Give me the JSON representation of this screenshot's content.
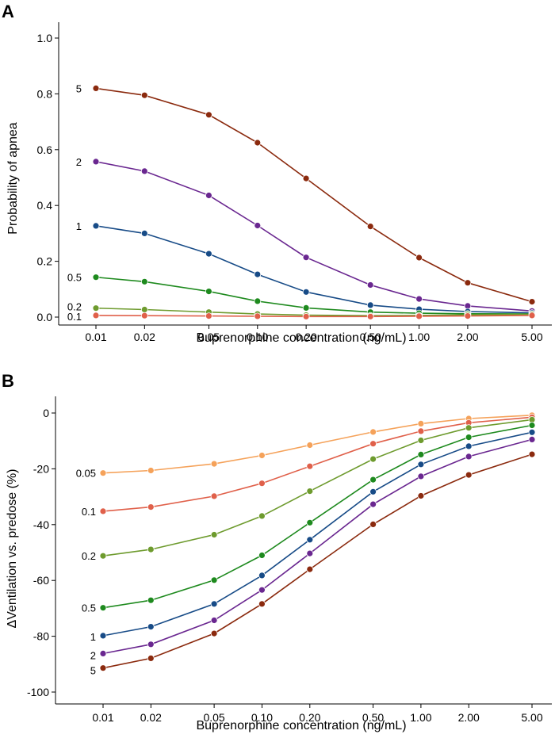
{
  "figure": {
    "panels": [
      "A",
      "B"
    ]
  },
  "colors": {
    "5": "#8b2a0e",
    "2": "#6a2790",
    "1": "#174b87",
    "0.5": "#1e8a1e",
    "0.2": "#6e9b2e",
    "0.1": "#e0604a",
    "0.05": "#f5a25a"
  },
  "chart_data": [
    {
      "panel": "A",
      "type": "line",
      "xlabel": "Buprenorphine concentration (ng/mL)",
      "ylabel": "Probability of apnea",
      "xscale": "log",
      "x": [
        0.01,
        0.02,
        0.05,
        0.1,
        0.2,
        0.5,
        1,
        2,
        5
      ],
      "xtick_labels": [
        "0.01",
        "0.02",
        "0.05",
        "0.10",
        "0.20",
        "0.50",
        "1.00",
        "2.00",
        "5.00"
      ],
      "ylim": [
        0,
        1.0
      ],
      "yticks": [
        0.0,
        0.2,
        0.4,
        0.6,
        0.8,
        1.0
      ],
      "ytick_labels": [
        "0.0",
        "0.2",
        "0.4",
        "0.6",
        "0.8",
        "1.0"
      ],
      "grid": false,
      "series": [
        {
          "name": "5",
          "values": [
            0.82,
            0.795,
            0.725,
            0.625,
            0.497,
            0.325,
            0.213,
            0.123,
            0.055
          ]
        },
        {
          "name": "2",
          "values": [
            0.557,
            0.523,
            0.436,
            0.328,
            0.214,
            0.115,
            0.065,
            0.04,
            0.022
          ]
        },
        {
          "name": "1",
          "values": [
            0.327,
            0.3,
            0.227,
            0.153,
            0.09,
            0.043,
            0.028,
            0.02,
            0.015
          ]
        },
        {
          "name": "0.5",
          "values": [
            0.143,
            0.127,
            0.092,
            0.057,
            0.033,
            0.018,
            0.014,
            0.012,
            0.011
          ]
        },
        {
          "name": "0.2",
          "values": [
            0.032,
            0.027,
            0.018,
            0.011,
            0.007,
            0.005,
            0.006,
            0.008,
            0.01
          ]
        },
        {
          "name": "0.1",
          "values": [
            0.006,
            0.005,
            0.004,
            0.003,
            0.002,
            0.002,
            0.003,
            0.004,
            0.006
          ]
        }
      ]
    },
    {
      "panel": "B",
      "type": "line",
      "xlabel": "Buprenorphine concentration (ng/mL)",
      "ylabel": "ΔVentilation vs. predose (%)",
      "xscale": "log",
      "x": [
        0.01,
        0.02,
        0.05,
        0.1,
        0.2,
        0.5,
        1,
        2,
        5
      ],
      "xtick_labels": [
        "0.01",
        "0.02",
        "0.05",
        "0.10",
        "0.20",
        "0.50",
        "1.00",
        "2.00",
        "5.00"
      ],
      "ylim": [
        -100,
        0
      ],
      "yticks": [
        0,
        -20,
        -40,
        -60,
        -80,
        -100
      ],
      "ytick_labels": [
        "0",
        "-20",
        "-40",
        "-60",
        "-80",
        "-100"
      ],
      "grid": false,
      "series": [
        {
          "name": "0.05",
          "values": [
            -21.5,
            -20.6,
            -18.2,
            -15.2,
            -11.5,
            -6.8,
            -3.8,
            -2.0,
            -0.8
          ]
        },
        {
          "name": "0.1",
          "values": [
            -35.2,
            -33.7,
            -29.8,
            -25.2,
            -19.1,
            -11.0,
            -6.5,
            -3.5,
            -1.5
          ]
        },
        {
          "name": "0.2",
          "values": [
            -51.2,
            -48.9,
            -43.6,
            -36.9,
            -28.0,
            -16.5,
            -9.8,
            -5.3,
            -2.4
          ]
        },
        {
          "name": "0.5",
          "values": [
            -69.8,
            -67.1,
            -59.9,
            -51.0,
            -39.3,
            -23.9,
            -14.9,
            -8.7,
            -4.4
          ]
        },
        {
          "name": "1",
          "values": [
            -79.8,
            -76.6,
            -68.4,
            -58.2,
            -45.4,
            -28.2,
            -18.4,
            -11.9,
            -6.9
          ]
        },
        {
          "name": "2",
          "values": [
            -86.2,
            -82.9,
            -74.3,
            -63.4,
            -50.3,
            -32.7,
            -22.7,
            -15.6,
            -9.5
          ]
        },
        {
          "name": "5",
          "values": [
            -91.4,
            -87.9,
            -79.0,
            -68.4,
            -56.0,
            -39.9,
            -29.7,
            -22.2,
            -14.8
          ]
        }
      ]
    }
  ]
}
